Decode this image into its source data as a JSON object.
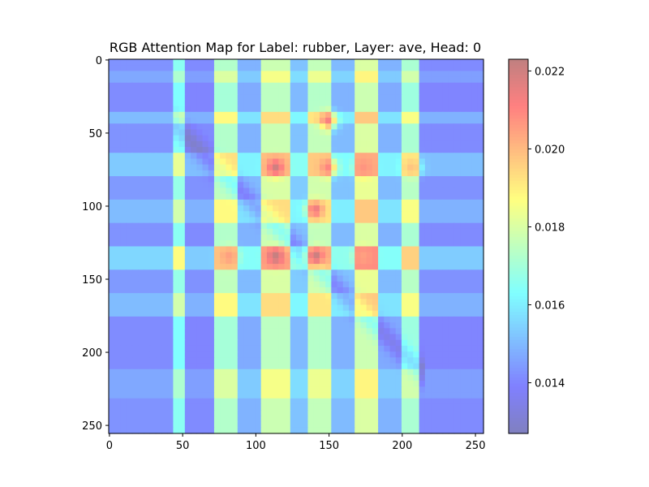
{
  "chart_data": {
    "type": "heatmap",
    "title": "RGB Attention Map for Label: rubber, Layer: ave, Head: 0",
    "xlabel": "",
    "ylabel": "",
    "xlim": [
      0,
      255
    ],
    "ylim": [
      255,
      0
    ],
    "xticks": [
      0,
      50,
      100,
      150,
      200,
      250
    ],
    "yticks": [
      0,
      50,
      100,
      150,
      200,
      250
    ],
    "grid": false,
    "colormap": "jet",
    "overlay_alpha": 0.5,
    "colorbar": {
      "range": [
        0.0127,
        0.0223
      ],
      "ticks": [
        "0.014",
        "0.016",
        "0.018",
        "0.020",
        "0.022"
      ],
      "tick_values": [
        0.014,
        0.016,
        0.018,
        0.02,
        0.022
      ]
    },
    "column_bands": [
      {
        "x": [
          0,
          42
        ],
        "level": 0.2
      },
      {
        "x": [
          43,
          51
        ],
        "level": 0.5
      },
      {
        "x": [
          52,
          71
        ],
        "level": 0.18
      },
      {
        "x": [
          72,
          88
        ],
        "level": 0.6
      },
      {
        "x": [
          89,
          105
        ],
        "level": 0.28
      },
      {
        "x": [
          106,
          123
        ],
        "level": 0.66
      },
      {
        "x": [
          124,
          136
        ],
        "level": 0.32
      },
      {
        "x": [
          137,
          152
        ],
        "level": 0.64
      },
      {
        "x": [
          153,
          166
        ],
        "level": 0.3
      },
      {
        "x": [
          167,
          183
        ],
        "level": 0.7
      },
      {
        "x": [
          184,
          200
        ],
        "level": 0.28
      },
      {
        "x": [
          201,
          213
        ],
        "level": 0.58
      },
      {
        "x": [
          214,
          255
        ],
        "level": 0.18
      }
    ],
    "row_bands": [
      {
        "y": [
          0,
          8
        ],
        "mod": 0.02
      },
      {
        "y": [
          9,
          14
        ],
        "mod": 0.08
      },
      {
        "y": [
          15,
          35
        ],
        "mod": 0.0
      },
      {
        "y": [
          36,
          45
        ],
        "mod": 0.14
      },
      {
        "y": [
          46,
          65
        ],
        "mod": 0.02
      },
      {
        "y": [
          66,
          78
        ],
        "mod": 0.18
      },
      {
        "y": [
          79,
          95
        ],
        "mod": 0.04
      },
      {
        "y": [
          96,
          112
        ],
        "mod": 0.14
      },
      {
        "y": [
          113,
          128
        ],
        "mod": 0.02
      },
      {
        "y": [
          129,
          142
        ],
        "mod": 0.22
      },
      {
        "y": [
          143,
          158
        ],
        "mod": 0.04
      },
      {
        "y": [
          159,
          176
        ],
        "mod": 0.14
      },
      {
        "y": [
          177,
          212
        ],
        "mod": 0.0
      },
      {
        "y": [
          213,
          230
        ],
        "mod": 0.08
      },
      {
        "y": [
          231,
          255
        ],
        "mod": 0.02
      }
    ],
    "diagonal_ridge": {
      "from": [
        55,
        55
      ],
      "to": [
        205,
        205
      ],
      "level": -0.12
    },
    "hotspots": [
      {
        "x": 114,
        "y": 74,
        "value": 0.022
      },
      {
        "x": 114,
        "y": 135,
        "value": 0.0222
      },
      {
        "x": 141,
        "y": 135,
        "value": 0.0222
      },
      {
        "x": 141,
        "y": 103,
        "value": 0.0215
      },
      {
        "x": 150,
        "y": 42,
        "value": 0.0212
      },
      {
        "x": 150,
        "y": 74,
        "value": 0.021
      },
      {
        "x": 82,
        "y": 135,
        "value": 0.0205
      },
      {
        "x": 174,
        "y": 135,
        "value": 0.0205
      },
      {
        "x": 174,
        "y": 74,
        "value": 0.0207
      },
      {
        "x": 207,
        "y": 74,
        "value": 0.0198
      }
    ]
  }
}
